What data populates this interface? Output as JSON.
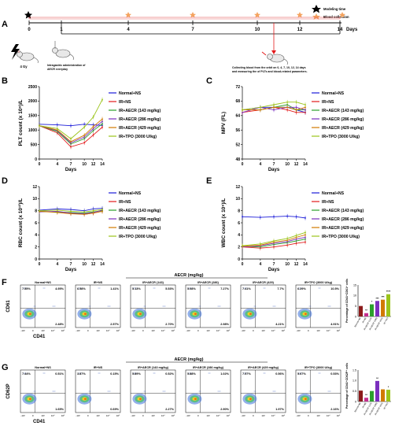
{
  "panels": {
    "a": "A",
    "b": "B",
    "c": "C",
    "d": "D",
    "e": "E",
    "f": "F",
    "g": "G"
  },
  "timeline": {
    "ticks": [
      "0",
      "1",
      "4",
      "7",
      "10",
      "12",
      "14"
    ],
    "days_label": "Days",
    "legend_modeling": "Modeling time",
    "legend_blood": "Blood collection",
    "mouse_dose": "4 Gy",
    "admin_text": [
      "Intragastric administration of",
      "AECR everyday"
    ],
    "collect_text": [
      "Collecting blood from the orbit on 0, 4, 7, 10, 12, 14 days",
      "and measuring the of PLTs and blood-related parameters."
    ]
  },
  "legend": [
    "Normal+NS",
    "IR+NS",
    "IR+AECR (143 mg/kg)",
    "IR+AECR (286 mg/kg)",
    "IR+AECR (429 mg/kg)",
    "IR+TPO (3000 U/kg)"
  ],
  "colors": [
    "#1b1bd8",
    "#e31a1c",
    "#2ca02c",
    "#7b2fbe",
    "#d17a00",
    "#9bc41a"
  ],
  "chart_data": [
    {
      "id": "B",
      "type": "line",
      "ylabel": "PLT count (x 10⁹)/L",
      "xlabel": "Days",
      "x": [
        0,
        4,
        7,
        10,
        12,
        14
      ],
      "ylim": [
        0,
        2500
      ],
      "yticks": [
        "0",
        "500",
        "1000",
        "1500",
        "2000",
        "2500"
      ],
      "series": [
        {
          "name": "Normal+NS",
          "values": [
            1200,
            1180,
            1150,
            1200,
            1180,
            1160
          ]
        },
        {
          "name": "IR+NS",
          "values": [
            1150,
            900,
            420,
            560,
            830,
            1100
          ]
        },
        {
          "name": "IR+AECR (143 mg/kg)",
          "values": [
            1150,
            950,
            520,
            700,
            980,
            1220
          ]
        },
        {
          "name": "IR+AECR (286 mg/kg)",
          "values": [
            1150,
            980,
            560,
            760,
            1050,
            1300
          ]
        },
        {
          "name": "IR+AECR (429 mg/kg)",
          "values": [
            1150,
            1000,
            600,
            820,
            1120,
            1380
          ]
        },
        {
          "name": "IR+TPO (3000 U/kg)",
          "values": [
            1150,
            1050,
            700,
            1100,
            1450,
            2050
          ]
        }
      ]
    },
    {
      "id": "C",
      "type": "line",
      "ylabel": "MPV (FL)",
      "xlabel": "Days",
      "x": [
        0,
        4,
        7,
        10,
        12,
        14
      ],
      "ylim": [
        48,
        76
      ],
      "yticks": [
        "48",
        "52",
        "56",
        "64",
        "68",
        "72"
      ],
      "series": [
        {
          "name": "Normal+NS",
          "values": [
            67,
            68,
            68,
            68,
            67,
            66
          ]
        },
        {
          "name": "IR+NS",
          "values": [
            66,
            67,
            68,
            67,
            66,
            66
          ]
        },
        {
          "name": "IR+AECR (143 mg/kg)",
          "values": [
            67,
            67,
            68,
            69,
            67,
            67
          ]
        },
        {
          "name": "IR+AECR (286 mg/kg)",
          "values": [
            66,
            68,
            67,
            68,
            68,
            67
          ]
        },
        {
          "name": "IR+AECR (429 mg/kg)",
          "values": [
            67,
            67,
            68,
            68,
            67,
            68
          ]
        },
        {
          "name": "IR+TPO (3000 U/kg)",
          "values": [
            67,
            68,
            69,
            70,
            70,
            69
          ]
        }
      ]
    },
    {
      "id": "D",
      "type": "line",
      "ylabel": "RBC count (x 10¹²)/L",
      "xlabel": "Days",
      "x": [
        0,
        4,
        7,
        10,
        12,
        14
      ],
      "ylim": [
        0,
        12
      ],
      "yticks": [
        "0",
        "2",
        "4",
        "6",
        "8",
        "10",
        "12"
      ],
      "series": [
        {
          "name": "Normal+NS",
          "values": [
            8.1,
            8.3,
            8.2,
            8.0,
            8.3,
            8.4
          ]
        },
        {
          "name": "IR+NS",
          "values": [
            7.9,
            7.8,
            7.6,
            7.4,
            7.6,
            7.9
          ]
        },
        {
          "name": "IR+AECR (143 mg/kg)",
          "values": [
            7.9,
            7.8,
            7.7,
            7.6,
            7.8,
            8.0
          ]
        },
        {
          "name": "IR+AECR (286 mg/kg)",
          "values": [
            7.8,
            7.9,
            7.6,
            7.5,
            7.7,
            8.1
          ]
        },
        {
          "name": "IR+AECR (429 mg/kg)",
          "values": [
            7.9,
            7.7,
            7.5,
            7.4,
            7.6,
            7.9
          ]
        },
        {
          "name": "IR+TPO (3000 U/kg)",
          "values": [
            8.0,
            8.1,
            7.9,
            7.8,
            8.0,
            8.2
          ]
        }
      ]
    },
    {
      "id": "E",
      "type": "line",
      "ylabel": "WBC count (x 10⁹)/L",
      "xlabel": "Days",
      "x": [
        0,
        4,
        7,
        10,
        12,
        14
      ],
      "ylim": [
        0,
        12
      ],
      "yticks": [
        "0",
        "2",
        "4",
        "6",
        "8",
        "10",
        "12"
      ],
      "series": [
        {
          "name": "Normal+NS",
          "values": [
            7.0,
            6.9,
            7.0,
            7.1,
            7.0,
            6.8
          ]
        },
        {
          "name": "IR+NS",
          "values": [
            2.0,
            1.8,
            2.0,
            2.3,
            2.6,
            2.8
          ]
        },
        {
          "name": "IR+AECR (143 mg/kg)",
          "values": [
            2.1,
            2.0,
            2.4,
            2.7,
            3.0,
            3.3
          ]
        },
        {
          "name": "IR+AECR (286 mg/kg)",
          "values": [
            2.0,
            2.2,
            2.6,
            2.9,
            3.3,
            3.6
          ]
        },
        {
          "name": "IR+AECR (429 mg/kg)",
          "values": [
            2.1,
            2.3,
            2.8,
            3.1,
            3.6,
            4.0
          ]
        },
        {
          "name": "IR+TPO (3000 U/kg)",
          "values": [
            2.2,
            2.5,
            3.0,
            3.4,
            3.9,
            4.4
          ]
        }
      ]
    }
  ],
  "flow_f": {
    "aecr_header": "AECR (mg/kg)",
    "yaxis": "CD61",
    "xaxis": "CD41",
    "ticks": [
      "-10³",
      "0",
      "10³",
      "10⁴",
      "10⁵"
    ],
    "plots": [
      {
        "label": "Normal+NS",
        "q": [
          "7.55%",
          "4.95%",
          "2.48%",
          ""
        ]
      },
      {
        "label": "IR+NS",
        "q": [
          "6.58%",
          "1.41%",
          "2.57%",
          ""
        ]
      },
      {
        "label": "IR+AECR (143)",
        "q": [
          "5.13%",
          "5.53%",
          "2.70%",
          ""
        ]
      },
      {
        "label": "IR+AECR (286)",
        "q": [
          "5.08%",
          "7.27%",
          "2.98%",
          ""
        ]
      },
      {
        "label": "IR+AECR (429)",
        "q": [
          "7.41%",
          "7.7%",
          "4.21%",
          ""
        ]
      },
      {
        "label": "IR+TPO (3000 U/kg)",
        "q": [
          "6.29%",
          "10.5%",
          "4.91%",
          ""
        ]
      }
    ],
    "bar_ylabel": "Percentage of CD41⁺CD61⁺ cells",
    "bar_ticks": [
      "0",
      "5",
      "10",
      "15"
    ],
    "bar_values": [
      5.0,
      1.6,
      5.8,
      7.4,
      8.0,
      10.6
    ],
    "bar_stars": [
      "",
      "**",
      "*",
      "***",
      "***",
      "****"
    ],
    "bar_cats": [
      "Normal+NS",
      "IR+NS",
      "IR+AECR (143)",
      "IR+AECR (286)",
      "IR+AECR (429)",
      "IR+TPO"
    ]
  },
  "flow_g": {
    "yaxis": "CD62P",
    "xaxis": "CD41",
    "ticks": [
      "-10³",
      "0",
      "10³",
      "10⁴",
      "10⁵"
    ],
    "plots": [
      {
        "label": "Normal+NS",
        "q": [
          "7.44%",
          "0.51%",
          "1.65%",
          ""
        ]
      },
      {
        "label": "IR+NS",
        "q": [
          "3.87%",
          "0.15%",
          "0.69%",
          ""
        ]
      },
      {
        "label": "IR+AECR (143 mg/kg)",
        "q": [
          "5.89%",
          "0.52%",
          "2.27%",
          ""
        ]
      },
      {
        "label": "IR+AECR (286 mg/kg)",
        "q": [
          "5.88%",
          "1.02%",
          "2.90%",
          ""
        ]
      },
      {
        "label": "IR+AECR (429 mg/kg)",
        "q": [
          "7.57%",
          "0.56%",
          "1.97%",
          ""
        ]
      },
      {
        "label": "IR+TPO (3000 U/kg)",
        "q": [
          "5.67%",
          "0.53%",
          "2.16%",
          ""
        ]
      }
    ],
    "bar_ylabel": "Percentage of CD41⁺CD62P⁺ cells",
    "bar_ticks": [
      "0",
      "0.5",
      "1.0",
      "1.5"
    ],
    "bar_values": [
      0.52,
      0.18,
      0.5,
      0.98,
      0.58,
      0.56
    ],
    "bar_stars": [
      "",
      "**",
      "",
      "**",
      "",
      "*"
    ],
    "bar_cats": [
      "Normal+NS",
      "IR+NS",
      "IR+AECR (143)",
      "IR+AECR (286)",
      "IR+AECR (429)",
      "IR+TPO"
    ]
  }
}
